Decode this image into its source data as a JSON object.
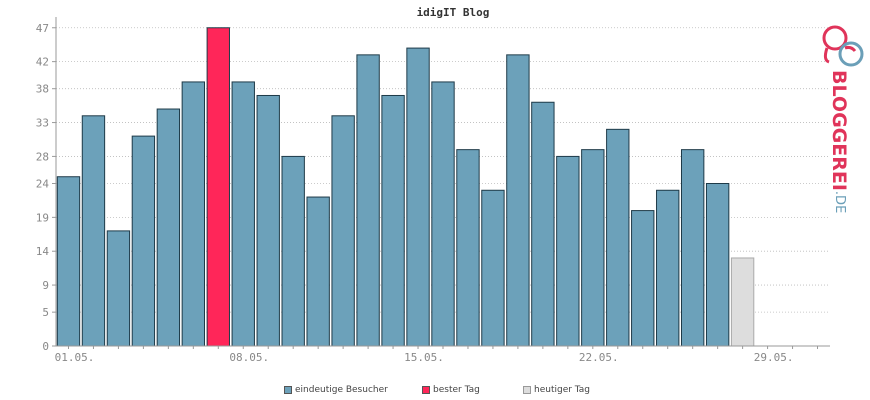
{
  "chart_data": {
    "type": "bar",
    "title": "idigIT Blog",
    "ylim": [
      0,
      48
    ],
    "yticks": [
      0,
      5,
      9,
      14,
      19,
      24,
      28,
      33,
      38,
      42,
      47
    ],
    "xtick_labels": [
      {
        "label": "01.05.",
        "index": 0
      },
      {
        "label": "08.05.",
        "index": 7
      },
      {
        "label": "15.05.",
        "index": 14
      },
      {
        "label": "22.05.",
        "index": 21
      },
      {
        "label": "29.05.",
        "index": 28
      }
    ],
    "values": [
      25,
      34,
      17,
      31,
      35,
      39,
      47,
      39,
      37,
      28,
      22,
      34,
      43,
      37,
      44,
      39,
      29,
      23,
      43,
      36,
      28,
      29,
      32,
      20,
      23,
      29,
      24,
      13
    ],
    "best_index": 6,
    "today_index": 27,
    "slots": 31,
    "grid": true,
    "legend_position": "bottom",
    "colors": {
      "visitors": "#6ca1ba",
      "best": "#ff2659",
      "today": "#dddddd",
      "bar_stroke": "#1e3a48",
      "today_stroke": "#aaaaaa"
    },
    "legend": [
      {
        "label": "eindeutige Besucher",
        "color": "#6ca1ba"
      },
      {
        "label": "bester Tag",
        "color": "#ff2659"
      },
      {
        "label": "heutiger Tag",
        "color": "#dddddd"
      }
    ]
  },
  "brand": {
    "name": "BLOGGEREI",
    "tld": ".DE",
    "color_primary": "#e0345a",
    "color_secondary": "#6b9fb8"
  }
}
